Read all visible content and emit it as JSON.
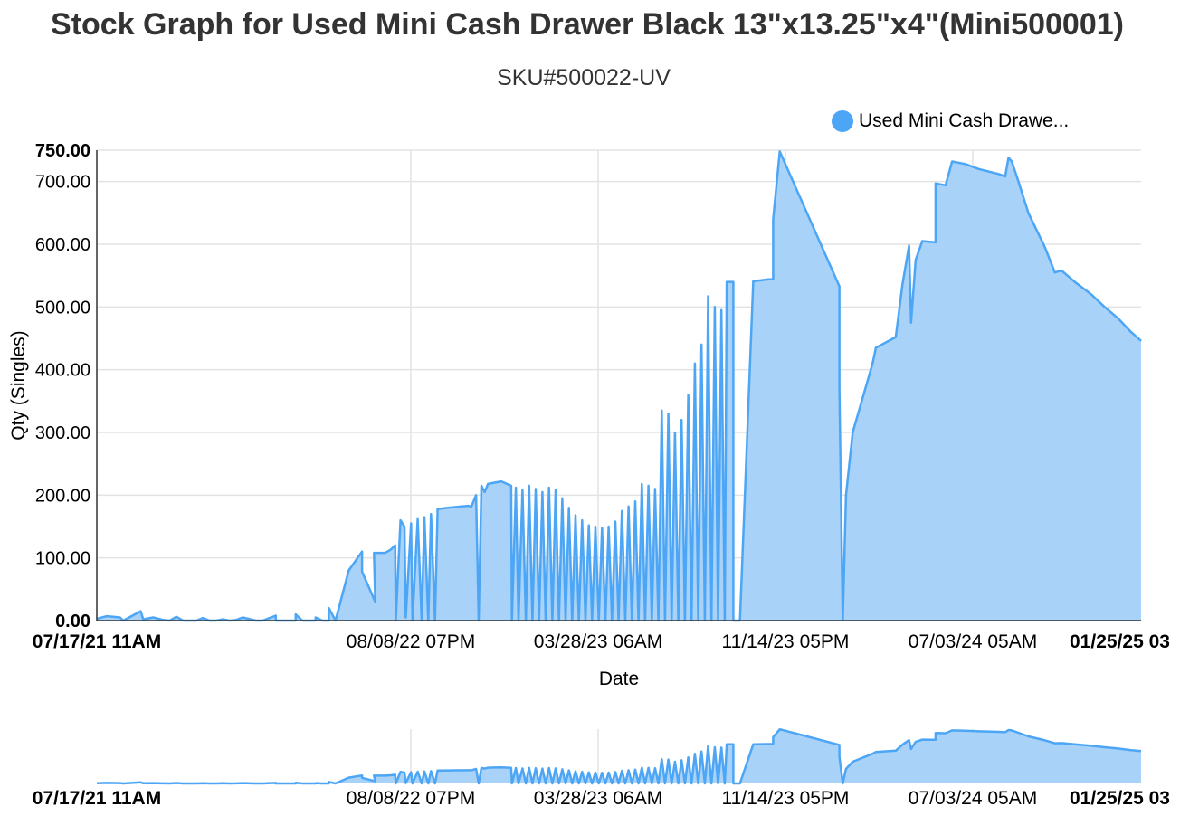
{
  "chart_data": {
    "type": "area",
    "title": "Stock Graph for Used Mini Cash Drawer Black 13\"x13.25\"x4\"(Mini500001)",
    "subtitle": "SKU#500022-UV",
    "xlabel": "Date",
    "ylabel": "Qty (Singles)",
    "ylim": [
      0,
      750
    ],
    "y_ticks": [
      "0.00",
      "100.00",
      "200.00",
      "300.00",
      "400.00",
      "500.00",
      "600.00",
      "700.00",
      "750.00"
    ],
    "x_ticks": [
      "07/17/21 11AM",
      "08/08/22 07PM",
      "03/28/23 06AM",
      "11/14/23 05PM",
      "07/03/24 05AM",
      "01/25/25 03"
    ],
    "grid": true,
    "legend_position": "top-right",
    "color": "#4da6f5",
    "fill_color": "#a8d2f7",
    "navigator": true,
    "series": [
      {
        "name": "Used Mini Cash Drawe...",
        "points": [
          [
            0,
            3
          ],
          [
            0.015,
            7
          ],
          [
            0.035,
            5
          ],
          [
            0.04,
            0
          ],
          [
            0.066,
            15
          ],
          [
            0.07,
            2
          ],
          [
            0.085,
            5
          ],
          [
            0.1,
            1
          ],
          [
            0.11,
            0
          ],
          [
            0.12,
            6
          ],
          [
            0.13,
            0
          ],
          [
            0.15,
            0
          ],
          [
            0.16,
            4
          ],
          [
            0.17,
            0
          ],
          [
            0.18,
            0
          ],
          [
            0.19,
            2
          ],
          [
            0.2,
            0
          ],
          [
            0.21,
            1
          ],
          [
            0.22,
            5
          ],
          [
            0.24,
            0
          ],
          [
            0.25,
            0
          ],
          [
            0.27,
            8
          ],
          [
            0.27,
            0
          ],
          [
            0.3,
            0
          ],
          [
            0.3,
            10
          ],
          [
            0.31,
            0
          ],
          [
            0.33,
            0
          ],
          [
            0.33,
            5
          ],
          [
            0.34,
            0
          ],
          [
            0.35,
            0
          ],
          [
            0.35,
            20
          ],
          [
            0.36,
            0
          ],
          [
            0.38,
            80
          ],
          [
            0.4,
            110
          ],
          [
            0.4,
            78
          ],
          [
            0.42,
            30
          ],
          [
            0.418,
            108
          ],
          [
            0.435,
            108
          ],
          [
            0.443,
            113
          ],
          [
            0.45,
            120
          ],
          [
            0.451,
            0
          ],
          [
            0.458,
            160
          ],
          [
            0.464,
            150
          ],
          [
            0.466,
            5
          ],
          [
            0.474,
            155
          ],
          [
            0.476,
            0
          ],
          [
            0.484,
            162
          ],
          [
            0.49,
            0
          ],
          [
            0.494,
            165
          ],
          [
            0.5,
            0
          ],
          [
            0.504,
            170
          ],
          [
            0.51,
            0
          ],
          [
            0.514,
            178
          ],
          [
            0.53,
            180
          ],
          [
            0.54,
            181
          ],
          [
            0.56,
            183
          ],
          [
            0.565,
            182
          ],
          [
            0.572,
            200
          ],
          [
            0.576,
            0
          ],
          [
            0.58,
            215
          ],
          [
            0.585,
            205
          ],
          [
            0.59,
            218
          ],
          [
            0.6,
            220
          ],
          [
            0.61,
            222
          ],
          [
            0.625,
            215
          ],
          [
            0.626,
            0
          ],
          [
            0.632,
            212
          ],
          [
            0.636,
            0
          ],
          [
            0.642,
            208
          ],
          [
            0.647,
            0
          ],
          [
            0.652,
            215
          ],
          [
            0.657,
            0
          ],
          [
            0.662,
            210
          ],
          [
            0.667,
            0
          ],
          [
            0.672,
            205
          ],
          [
            0.677,
            0
          ],
          [
            0.682,
            212
          ],
          [
            0.687,
            0
          ],
          [
            0.692,
            208
          ],
          [
            0.697,
            0
          ],
          [
            0.702,
            195
          ],
          [
            0.707,
            0
          ],
          [
            0.712,
            180
          ],
          [
            0.717,
            0
          ],
          [
            0.722,
            168
          ],
          [
            0.727,
            0
          ],
          [
            0.732,
            160
          ],
          [
            0.737,
            0
          ],
          [
            0.742,
            152
          ],
          [
            0.747,
            0
          ],
          [
            0.752,
            150
          ],
          [
            0.757,
            0
          ],
          [
            0.762,
            148
          ],
          [
            0.767,
            0
          ],
          [
            0.772,
            150
          ],
          [
            0.777,
            0
          ],
          [
            0.782,
            158
          ],
          [
            0.787,
            0
          ],
          [
            0.792,
            175
          ],
          [
            0.797,
            0
          ],
          [
            0.802,
            182
          ],
          [
            0.807,
            0
          ],
          [
            0.812,
            190
          ],
          [
            0.817,
            0
          ],
          [
            0.822,
            218
          ],
          [
            0.827,
            0
          ],
          [
            0.832,
            215
          ],
          [
            0.837,
            0
          ],
          [
            0.842,
            210
          ],
          [
            0.847,
            0
          ],
          [
            0.852,
            335
          ],
          [
            0.857,
            0
          ],
          [
            0.862,
            330
          ],
          [
            0.867,
            0
          ],
          [
            0.872,
            300
          ],
          [
            0.877,
            0
          ],
          [
            0.882,
            320
          ],
          [
            0.887,
            0
          ],
          [
            0.892,
            360
          ],
          [
            0.897,
            0
          ],
          [
            0.902,
            410
          ],
          [
            0.907,
            0
          ],
          [
            0.912,
            440
          ],
          [
            0.917,
            0
          ],
          [
            0.922,
            517
          ],
          [
            0.927,
            0
          ],
          [
            0.932,
            500
          ],
          [
            0.937,
            0
          ],
          [
            0.942,
            495
          ],
          [
            0.947,
            0
          ],
          [
            0.95,
            540
          ],
          [
            0.96,
            540
          ],
          [
            0.96,
            0
          ],
          [
            0.97,
            0
          ],
          [
            0.99,
            541
          ],
          [
            1.02,
            545
          ],
          [
            1.02,
            640
          ],
          [
            1.03,
            748
          ],
          [
            1.12,
            533
          ],
          [
            1.12,
            370
          ],
          [
            1.125,
            0
          ],
          [
            1.13,
            200
          ],
          [
            1.14,
            300
          ],
          [
            1.17,
            410
          ],
          [
            1.175,
            435
          ],
          [
            1.205,
            452
          ],
          [
            1.215,
            535
          ],
          [
            1.225,
            598
          ],
          [
            1.228,
            475
          ],
          [
            1.235,
            575
          ],
          [
            1.245,
            605
          ],
          [
            1.265,
            603
          ],
          [
            1.265,
            697
          ],
          [
            1.28,
            694
          ],
          [
            1.29,
            732
          ],
          [
            1.31,
            728
          ],
          [
            1.33,
            720
          ],
          [
            1.36,
            712
          ],
          [
            1.37,
            708
          ],
          [
            1.375,
            738
          ],
          [
            1.38,
            732
          ],
          [
            1.39,
            700
          ],
          [
            1.405,
            650
          ],
          [
            1.43,
            595
          ],
          [
            1.445,
            555
          ],
          [
            1.455,
            558
          ],
          [
            1.475,
            540
          ],
          [
            1.5,
            520
          ],
          [
            1.52,
            500
          ],
          [
            1.54,
            482
          ],
          [
            1.56,
            460
          ],
          [
            1.575,
            446
          ]
        ]
      }
    ]
  },
  "legend": {
    "label": "Used Mini Cash Drawe..."
  }
}
